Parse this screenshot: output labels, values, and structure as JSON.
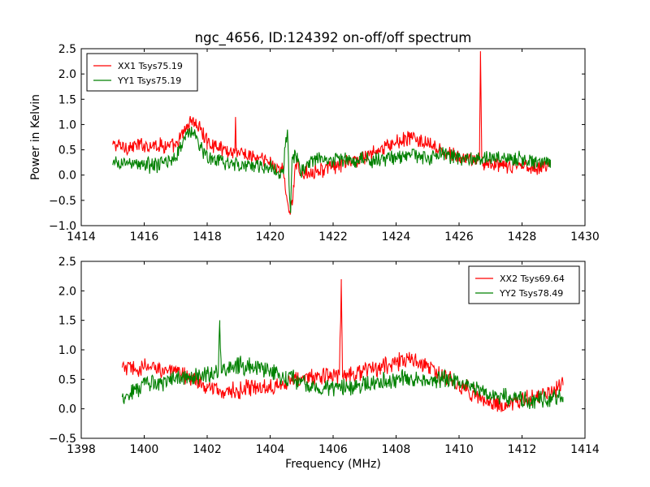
{
  "figure": {
    "title": "ngc_4656, ID:124392 on-off/off spectrum"
  },
  "colors": {
    "red": "#ff0000",
    "green": "#008000",
    "axes": "#000000",
    "background": "#ffffff"
  },
  "chart_data": [
    {
      "type": "line",
      "title": "ngc_4656, ID:124392 on-off/off spectrum",
      "xlabel": "",
      "ylabel": "Power in Kelvin",
      "xlim": [
        1414,
        1430
      ],
      "ylim": [
        -1.0,
        2.5
      ],
      "xticks": [
        1414,
        1416,
        1418,
        1420,
        1422,
        1424,
        1426,
        1428,
        1430
      ],
      "xtick_labels": [
        "1414",
        "1416",
        "1418",
        "1420",
        "1422",
        "1424",
        "1426",
        "1428",
        "1430"
      ],
      "yticks": [
        -1.0,
        -0.5,
        0.0,
        0.5,
        1.0,
        1.5,
        2.0,
        2.5
      ],
      "ytick_labels": [
        "−1.0",
        "−0.5",
        "0.0",
        "0.5",
        "1.0",
        "1.5",
        "2.0",
        "2.5"
      ],
      "grid": false,
      "legend_position": "top-left",
      "series": [
        {
          "name": "XX1 Tsys75.19",
          "color": "#ff0000",
          "x": [
            1415.0,
            1415.5,
            1416.0,
            1416.5,
            1417.0,
            1417.3,
            1417.5,
            1417.8,
            1418.0,
            1418.4,
            1418.8,
            1418.88,
            1418.9,
            1418.92,
            1419.0,
            1419.5,
            1420.0,
            1420.4,
            1420.6,
            1420.7,
            1420.8,
            1421.0,
            1421.5,
            1422.0,
            1422.5,
            1423.0,
            1423.5,
            1424.0,
            1424.5,
            1425.0,
            1425.5,
            1426.0,
            1426.6,
            1426.65,
            1426.68,
            1426.72,
            1426.8,
            1427.0,
            1427.5,
            1428.0,
            1428.5,
            1428.9
          ],
          "values": [
            0.6,
            0.55,
            0.6,
            0.6,
            0.55,
            0.9,
            1.1,
            0.9,
            0.65,
            0.55,
            0.45,
            0.5,
            1.15,
            0.5,
            0.45,
            0.35,
            0.25,
            0.1,
            -0.7,
            -0.6,
            0.2,
            0.05,
            0.1,
            0.15,
            0.25,
            0.35,
            0.5,
            0.65,
            0.75,
            0.6,
            0.45,
            0.35,
            0.3,
            0.35,
            2.45,
            0.35,
            0.25,
            0.2,
            0.15,
            0.2,
            0.15,
            0.2
          ]
        },
        {
          "name": "YY1 Tsys75.19",
          "color": "#008000",
          "x": [
            1415.0,
            1415.5,
            1416.0,
            1416.5,
            1417.0,
            1417.3,
            1417.5,
            1417.8,
            1418.0,
            1418.5,
            1419.0,
            1419.5,
            1420.0,
            1420.4,
            1420.55,
            1420.6,
            1420.65,
            1420.7,
            1420.8,
            1421.0,
            1421.5,
            1422.0,
            1422.5,
            1423.0,
            1423.5,
            1424.0,
            1424.5,
            1425.0,
            1425.5,
            1426.0,
            1426.5,
            1427.0,
            1427.5,
            1428.0,
            1428.5,
            1428.9
          ],
          "values": [
            0.2,
            0.25,
            0.2,
            0.2,
            0.35,
            0.75,
            0.9,
            0.55,
            0.35,
            0.25,
            0.2,
            0.2,
            0.15,
            0.05,
            0.9,
            -0.2,
            -0.75,
            0.3,
            0.4,
            0.1,
            0.35,
            0.3,
            0.3,
            0.3,
            0.3,
            0.35,
            0.4,
            0.35,
            0.4,
            0.35,
            0.3,
            0.35,
            0.35,
            0.3,
            0.25,
            0.3
          ]
        }
      ]
    },
    {
      "type": "line",
      "title": "",
      "xlabel": "Frequency (MHz)",
      "ylabel": "",
      "xlim": [
        1398,
        1414
      ],
      "ylim": [
        -0.5,
        2.5
      ],
      "xticks": [
        1398,
        1400,
        1402,
        1404,
        1406,
        1408,
        1410,
        1412,
        1414
      ],
      "xtick_labels": [
        "1398",
        "1400",
        "1402",
        "1404",
        "1406",
        "1408",
        "1410",
        "1412",
        "1414"
      ],
      "yticks": [
        -0.5,
        0.0,
        0.5,
        1.0,
        1.5,
        2.0,
        2.5
      ],
      "ytick_labels": [
        "−0.5",
        "0.0",
        "0.5",
        "1.0",
        "1.5",
        "2.0",
        "2.5"
      ],
      "grid": false,
      "legend_position": "top-right",
      "series": [
        {
          "name": "XX2 Tsys69.64",
          "color": "#ff0000",
          "x": [
            1399.3,
            1399.8,
            1400.0,
            1400.5,
            1401.0,
            1401.5,
            1402.0,
            1402.5,
            1403.0,
            1403.5,
            1404.0,
            1404.5,
            1405.0,
            1405.5,
            1406.0,
            1406.2,
            1406.26,
            1406.3,
            1406.34,
            1406.5,
            1407.0,
            1407.5,
            1408.0,
            1408.5,
            1409.0,
            1409.5,
            1410.0,
            1410.5,
            1411.0,
            1411.5,
            1412.0,
            1412.5,
            1413.0,
            1413.3
          ],
          "values": [
            0.7,
            0.65,
            0.7,
            0.7,
            0.6,
            0.55,
            0.35,
            0.3,
            0.3,
            0.35,
            0.4,
            0.45,
            0.5,
            0.55,
            0.55,
            0.6,
            2.1,
            0.6,
            0.6,
            0.6,
            0.65,
            0.7,
            0.8,
            0.85,
            0.7,
            0.55,
            0.4,
            0.25,
            0.1,
            0.05,
            0.15,
            0.2,
            0.3,
            0.4
          ]
        },
        {
          "name": "YY2 Tsys78.49",
          "color": "#008000",
          "x": [
            1399.3,
            1399.8,
            1400.0,
            1400.5,
            1401.0,
            1401.5,
            1402.0,
            1402.35,
            1402.4,
            1402.45,
            1402.5,
            1403.0,
            1403.5,
            1404.0,
            1404.5,
            1405.0,
            1405.5,
            1406.0,
            1406.5,
            1407.0,
            1407.5,
            1408.0,
            1408.5,
            1409.0,
            1409.5,
            1410.0,
            1410.5,
            1411.0,
            1411.5,
            1412.0,
            1412.5,
            1413.0,
            1413.3
          ],
          "values": [
            0.2,
            0.35,
            0.4,
            0.45,
            0.5,
            0.55,
            0.6,
            0.6,
            1.4,
            0.6,
            0.65,
            0.75,
            0.7,
            0.65,
            0.55,
            0.45,
            0.35,
            0.35,
            0.35,
            0.4,
            0.45,
            0.5,
            0.5,
            0.5,
            0.5,
            0.45,
            0.35,
            0.25,
            0.2,
            0.15,
            0.15,
            0.2,
            0.2
          ]
        }
      ]
    }
  ]
}
